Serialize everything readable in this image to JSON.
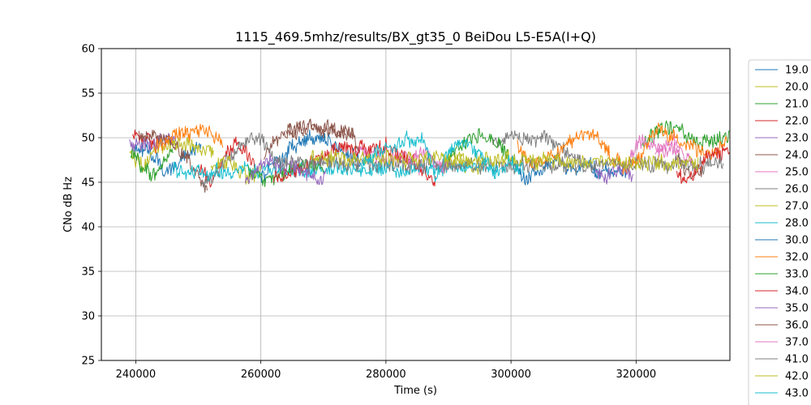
{
  "chart_data": {
    "type": "line",
    "title": "1115_469.5mhz/results/BX_gt35_0 BeiDou L5-E5A(I+Q)",
    "xlabel": "Time (s)",
    "ylabel": "CNo dB Hz",
    "xlim": [
      234500,
      335000
    ],
    "ylim": [
      25,
      60
    ],
    "xticks": [
      240000,
      260000,
      280000,
      300000,
      320000
    ],
    "xtick_labels": [
      "240000",
      "260000",
      "280000",
      "300000",
      "320000"
    ],
    "yticks": [
      25,
      30,
      35,
      40,
      45,
      50,
      55,
      60
    ],
    "ytick_labels": [
      "25",
      "30",
      "35",
      "40",
      "45",
      "50",
      "55",
      "60"
    ],
    "grid": true,
    "legend_position": "outside-right",
    "series": [
      {
        "name": "19.0",
        "color": "#1f77b4",
        "segments": [
          {
            "start": 239500,
            "end": 250500,
            "t": [
              239500,
              242500,
              244500,
              247000,
              249500,
              250500
            ],
            "v": [
              49.0,
              48.2,
              46.0,
              47.5,
              48.8,
              49.0
            ]
          },
          {
            "start": 313000,
            "end": 318500,
            "t": [
              313000,
              314500,
              316000,
              318500
            ],
            "v": [
              46.0,
              46.5,
              46.0,
              46.3
            ]
          }
        ]
      },
      {
        "name": "20.0",
        "color": "#bcbd22",
        "segments": [
          {
            "start": 239000,
            "end": 252500,
            "t": [
              239000,
              241000,
              243000,
              246000,
              249000,
              252500
            ],
            "v": [
              48.0,
              47.0,
              48.5,
              49.5,
              49.0,
              48.5
            ]
          }
        ]
      },
      {
        "name": "21.0",
        "color": "#2ca02c",
        "segments": [
          {
            "start": 239200,
            "end": 246000,
            "t": [
              239200,
              241000,
              243000,
              244500,
              246000
            ],
            "v": [
              48.5,
              47.0,
              45.5,
              47.5,
              49.0
            ]
          },
          {
            "start": 321000,
            "end": 335000,
            "t": [
              321000,
              323500,
              325500,
              327500,
              330000,
              332500,
              335000
            ],
            "v": [
              49.5,
              50.5,
              51.5,
              50.5,
              49.5,
              49.8,
              50.0
            ]
          }
        ]
      },
      {
        "name": "22.0",
        "color": "#d62728",
        "segments": [
          {
            "start": 239500,
            "end": 243500,
            "t": [
              239500,
              241000,
              243500
            ],
            "v": [
              50.5,
              50.0,
              49.5
            ]
          },
          {
            "start": 250000,
            "end": 259000,
            "t": [
              250000,
              252000,
              254000,
              256000,
              258000,
              259000
            ],
            "v": [
              46.5,
              45.0,
              47.5,
              49.5,
              48.0,
              47.0
            ]
          }
        ]
      },
      {
        "name": "23.0",
        "color": "#9467bd",
        "segments": [
          {
            "start": 239000,
            "end": 246500,
            "t": [
              239000,
              241500,
              244000,
              246500
            ],
            "v": [
              49.5,
              49.0,
              49.5,
              49.8
            ]
          }
        ]
      },
      {
        "name": "24.0",
        "color": "#8c564b",
        "segments": [
          {
            "start": 240500,
            "end": 251500,
            "t": [
              240500,
              243000,
              245500,
              248000,
              250500,
              251500
            ],
            "v": [
              50.0,
              50.2,
              49.5,
              48.0,
              45.0,
              44.5
            ]
          },
          {
            "start": 260500,
            "end": 276000,
            "t": [
              260500,
              263000,
              266000,
              269000,
              272000,
              274500,
              276000
            ],
            "v": [
              48.0,
              50.0,
              51.2,
              51.0,
              51.0,
              50.5,
              48.5
            ]
          },
          {
            "start": 326000,
            "end": 331000,
            "t": [
              326000,
              327500,
              329000,
              331000
            ],
            "v": [
              48.5,
              47.0,
              46.0,
              47.0
            ]
          }
        ]
      },
      {
        "name": "25.0",
        "color": "#e377c2",
        "segments": [
          {
            "start": 275000,
            "end": 286000,
            "t": [
              275000,
              277500,
              280000,
              282500,
              284500,
              286000
            ],
            "v": [
              48.5,
              48.0,
              47.5,
              48.0,
              47.0,
              46.5
            ]
          },
          {
            "start": 318500,
            "end": 327000,
            "t": [
              318500,
              320500,
              322500,
              324500,
              326000,
              327000
            ],
            "v": [
              47.0,
              50.0,
              49.5,
              48.0,
              49.5,
              48.5
            ]
          }
        ]
      },
      {
        "name": "26.0",
        "color": "#7f7f7f",
        "segments": [
          {
            "start": 250500,
            "end": 262000,
            "t": [
              250500,
              253000,
              256000,
              258500,
              260000,
              262000
            ],
            "v": [
              44.5,
              46.0,
              48.5,
              50.0,
              49.5,
              48.0
            ]
          },
          {
            "start": 297000,
            "end": 312000,
            "t": [
              297000,
              300000,
              303000,
              306000,
              309000,
              312000
            ],
            "v": [
              49.5,
              50.2,
              50.0,
              49.8,
              48.5,
              47.0
            ]
          }
        ]
      },
      {
        "name": "27.0",
        "color": "#bcbd22",
        "segments": [
          {
            "start": 252000,
            "end": 260000,
            "t": [
              252000,
              254000,
              256000,
              258000,
              260000
            ],
            "v": [
              46.0,
              47.5,
              46.5,
              45.5,
              46.5
            ]
          },
          {
            "start": 288500,
            "end": 296000,
            "t": [
              288500,
              290500,
              292500,
              294000,
              296000
            ],
            "v": [
              46.5,
              48.0,
              47.0,
              46.0,
              47.5
            ]
          }
        ]
      },
      {
        "name": "28.0",
        "color": "#17becf",
        "segments": [
          {
            "start": 246000,
            "end": 298000,
            "t": [
              246000,
              258000,
              272000,
              286000,
              298000
            ],
            "v": [
              46.2,
              46.3,
              46.4,
              46.5,
              46.6
            ]
          }
        ]
      },
      {
        "name": "30.0",
        "color": "#1f77b4",
        "segments": [
          {
            "start": 260000,
            "end": 276000,
            "t": [
              260000,
              262500,
              265000,
              268000,
              271000,
              273500,
              276000
            ],
            "v": [
              45.5,
              47.0,
              49.0,
              50.0,
              49.5,
              48.5,
              47.5
            ]
          },
          {
            "start": 300000,
            "end": 314000,
            "t": [
              300000,
              302500,
              305000,
              307500,
              310000,
              312000,
              314000
            ],
            "v": [
              47.0,
              45.5,
              46.5,
              47.5,
              46.0,
              47.0,
              46.0
            ]
          }
        ]
      },
      {
        "name": "32.0",
        "color": "#ff7f0e",
        "segments": [
          {
            "start": 243000,
            "end": 254000,
            "t": [
              243000,
              245500,
              248000,
              250500,
              252500,
              254000
            ],
            "v": [
              49.0,
              50.0,
              50.5,
              51.0,
              50.5,
              49.0
            ]
          },
          {
            "start": 301000,
            "end": 334500,
            "t": [
              301000,
              303500,
              306000,
              309000,
              311500,
              314000,
              316000,
              318500,
              321000,
              323500,
              326000,
              329000,
              332000,
              334500
            ],
            "v": [
              49.0,
              47.0,
              47.5,
              49.5,
              50.5,
              50.0,
              48.0,
              46.5,
              48.5,
              51.0,
              50.0,
              49.0,
              48.0,
              49.5
            ]
          }
        ]
      },
      {
        "name": "33.0",
        "color": "#2ca02c",
        "segments": [
          {
            "start": 258000,
            "end": 270000,
            "t": [
              258000,
              261000,
              264000,
              267000,
              270000
            ],
            "v": [
              46.5,
              45.0,
              46.0,
              47.0,
              46.5
            ]
          },
          {
            "start": 290000,
            "end": 301000,
            "t": [
              290000,
              292500,
              295000,
              297500,
              299500,
              301000
            ],
            "v": [
              48.0,
              49.5,
              50.5,
              49.5,
              48.0,
              47.0
            ]
          }
        ]
      },
      {
        "name": "34.0",
        "color": "#d62728",
        "segments": [
          {
            "start": 262000,
            "end": 288000,
            "t": [
              262000,
              265000,
              268000,
              271000,
              274000,
              277000,
              280000,
              283000,
              286000,
              288000
            ],
            "v": [
              45.5,
              46.0,
              47.5,
              48.5,
              49.0,
              48.5,
              49.0,
              48.0,
              46.5,
              45.0
            ]
          },
          {
            "start": 326500,
            "end": 335000,
            "t": [
              326500,
              328500,
              330500,
              332500,
              335000
            ],
            "v": [
              46.0,
              45.0,
              47.0,
              48.5,
              48.0
            ]
          }
        ]
      },
      {
        "name": "35.0",
        "color": "#9467bd",
        "segments": [
          {
            "start": 257500,
            "end": 270500,
            "t": [
              257500,
              259500,
              261500,
              263500,
              265500,
              267500,
              269500,
              270500
            ],
            "v": [
              45.0,
              46.5,
              47.5,
              46.5,
              47.0,
              46.0,
              45.5,
              46.0
            ]
          },
          {
            "start": 313500,
            "end": 319500,
            "t": [
              313500,
              315500,
              317500,
              319500
            ],
            "v": [
              46.0,
              45.5,
              46.5,
              46.0
            ]
          }
        ]
      },
      {
        "name": "36.0",
        "color": "#8c564b",
        "segments": [
          {
            "start": 264000,
            "end": 275000,
            "t": [
              264000,
              267000,
              270000,
              273000,
              275000
            ],
            "v": [
              50.5,
              51.0,
              50.8,
              51.0,
              50.5
            ]
          }
        ]
      },
      {
        "name": "37.0",
        "color": "#e377c2",
        "segments": [
          {
            "start": 283500,
            "end": 290000,
            "t": [
              283500,
              285500,
              287500,
              290000
            ],
            "v": [
              47.0,
              48.5,
              47.5,
              46.5
            ]
          },
          {
            "start": 323000,
            "end": 329000,
            "t": [
              323000,
              325000,
              327000,
              329000
            ],
            "v": [
              48.0,
              49.5,
              48.5,
              47.0
            ]
          }
        ]
      },
      {
        "name": "41.0",
        "color": "#7f7f7f",
        "segments": [
          {
            "start": 262000,
            "end": 334000,
            "t": [
              262000,
              280000,
              300000,
              320000,
              334000
            ],
            "v": [
              47.2,
              47.0,
              46.8,
              46.9,
              47.0
            ]
          }
        ]
      },
      {
        "name": "42.0",
        "color": "#bcbd22",
        "segments": [
          {
            "start": 268000,
            "end": 330000,
            "t": [
              268000,
              285000,
              300000,
              315000,
              330000
            ],
            "v": [
              47.8,
              47.6,
              47.5,
              47.3,
              47.2
            ]
          }
        ]
      },
      {
        "name": "43.0",
        "color": "#17becf",
        "segments": [
          {
            "start": 276000,
            "end": 302000,
            "t": [
              276000,
              278500,
              281000,
              283500,
              286000,
              288000,
              290000,
              292500,
              295000,
              297500,
              300000,
              302000
            ],
            "v": [
              46.5,
              48.0,
              49.0,
              50.0,
              49.5,
              45.5,
              48.5,
              49.5,
              48.0,
              46.0,
              47.5,
              46.0
            ]
          }
        ]
      }
    ]
  }
}
